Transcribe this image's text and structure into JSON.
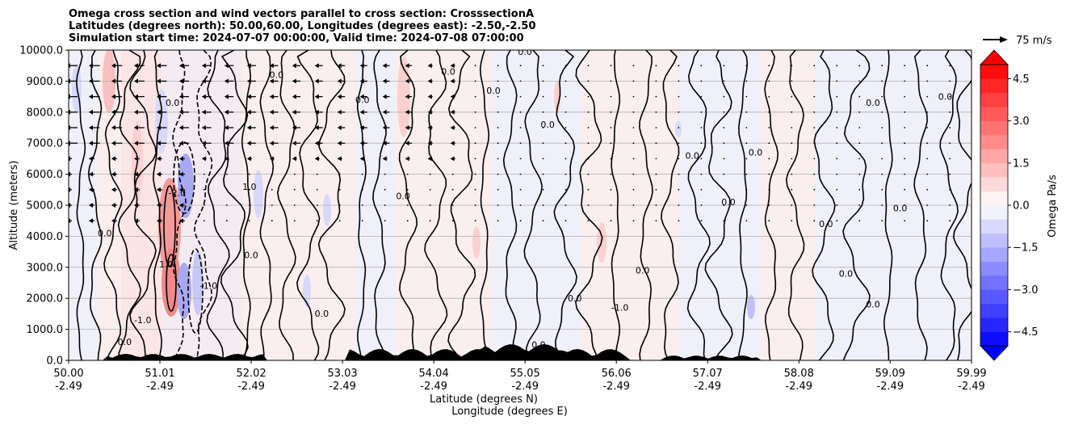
{
  "chart_data": {
    "type": "heatmap",
    "title_lines": [
      "Omega cross section and wind vectors parallel to cross section: CrosssectionA",
      "Latitudes (degrees north): 50.00,60.00, Longitudes (degrees east): -2.50,-2.50",
      "Simulation start time: 2024-07-07 00:00:00, Valid time: 2024-07-08 07:00:00"
    ],
    "ylabel": "Altitude (meters)",
    "xlabel_lat": "Latitude (degrees N)",
    "xlabel_lon": "Longitude (degrees E)",
    "ylim": [
      0,
      10000
    ],
    "yticks": [
      "0.0",
      "1000.0",
      "2000.0",
      "3000.0",
      "4000.0",
      "5000.0",
      "6000.0",
      "7000.0",
      "8000.0",
      "9000.0",
      "10000.0"
    ],
    "ytick_values": [
      0,
      1000,
      2000,
      3000,
      4000,
      5000,
      6000,
      7000,
      8000,
      9000,
      10000
    ],
    "xticks_lat": [
      "50.00",
      "51.01",
      "52.02",
      "53.03",
      "54.04",
      "55.05",
      "56.06",
      "57.07",
      "58.08",
      "59.09",
      "59.99"
    ],
    "xticks_lon": [
      "-2.49",
      "-2.49",
      "-2.49",
      "-2.49",
      "-2.49",
      "-2.49",
      "-2.49",
      "-2.49",
      "-2.49",
      "-2.49",
      "-2.49"
    ],
    "xtick_values": [
      50.0,
      51.01,
      52.02,
      53.03,
      54.04,
      55.05,
      56.06,
      57.07,
      58.08,
      59.09,
      59.99
    ],
    "xlim": [
      50.0,
      59.99
    ],
    "grid": "horizontal",
    "colorbar": {
      "label": "Omega Pa/s",
      "ticks": [
        "−4.5",
        "−3.0",
        "−1.5",
        "0.0",
        "1.5",
        "3.0",
        "4.5"
      ],
      "tick_values": [
        -4.5,
        -3.0,
        -1.5,
        0.0,
        1.5,
        3.0,
        4.5
      ],
      "range": [
        -5,
        5
      ],
      "cmap": "bwr"
    },
    "quiver_key": {
      "label": "75 m/s",
      "value": 75
    },
    "contour_labels": [
      {
        "text": "0.0",
        "x": 50.62,
        "y": 500
      },
      {
        "text": "0.0",
        "x": 51.15,
        "y": 8200
      },
      {
        "text": "0.0",
        "x": 52.02,
        "y": 3300
      },
      {
        "text": "0.0",
        "x": 53.25,
        "y": 8300
      },
      {
        "text": "0.0",
        "x": 55.05,
        "y": 9850
      },
      {
        "text": "0.0",
        "x": 58.38,
        "y": 4300
      },
      {
        "text": "0.0",
        "x": 59.2,
        "y": 4800
      },
      {
        "text": "0.0",
        "x": 59.7,
        "y": 8400
      },
      {
        "text": "0.0",
        "x": 50.4,
        "y": 4000
      },
      {
        "text": "0.0",
        "x": 52.3,
        "y": 9100
      },
      {
        "text": "0.0",
        "x": 54.2,
        "y": 9200
      },
      {
        "text": "0.0",
        "x": 56.9,
        "y": 6500
      },
      {
        "text": "0.0",
        "x": 57.6,
        "y": 6600
      },
      {
        "text": "0.0",
        "x": 54.7,
        "y": 8600
      },
      {
        "text": "0.0",
        "x": 55.3,
        "y": 7500
      },
      {
        "text": "0.0",
        "x": 58.9,
        "y": 8200
      },
      {
        "text": "0.0",
        "x": 53.7,
        "y": 5200
      },
      {
        "text": "0.0",
        "x": 55.6,
        "y": 1900
      },
      {
        "text": "0.0",
        "x": 56.35,
        "y": 2800
      },
      {
        "text": "0.0",
        "x": 57.3,
        "y": 5000
      },
      {
        "text": "0.0",
        "x": 58.6,
        "y": 2700
      },
      {
        "text": "0.0",
        "x": 58.9,
        "y": 1700
      },
      {
        "text": "0.0",
        "x": 55.2,
        "y": 400
      },
      {
        "text": "0.0",
        "x": 52.8,
        "y": 1400
      },
      {
        "text": "-1.0",
        "x": 51.55,
        "y": 2300
      },
      {
        "text": "-1.0",
        "x": 56.1,
        "y": 1600
      },
      {
        "text": "-2.0",
        "x": 51.2,
        "y": 5300
      },
      {
        "text": "1.0",
        "x": 51.08,
        "y": 3000
      },
      {
        "text": "1.0",
        "x": 52.0,
        "y": 5500
      },
      {
        "text": "-1.0",
        "x": 50.82,
        "y": 1200
      }
    ]
  }
}
